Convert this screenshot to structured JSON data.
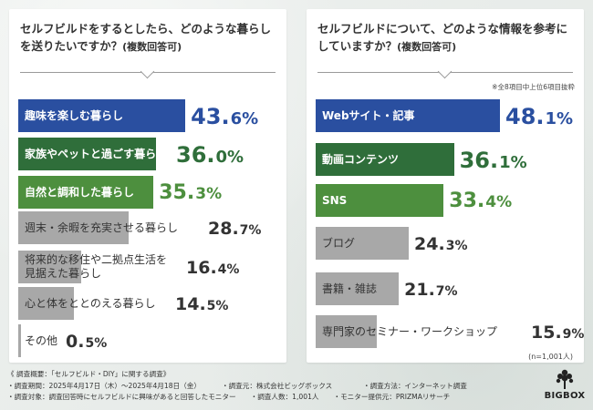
{
  "colors": {
    "blue": "#2a4fa0",
    "green_dark": "#2f6e3a",
    "green_mid": "#4d8f3e",
    "gray_bar": "#a8a8a8",
    "gray_text": "#333333"
  },
  "chart_data": [
    {
      "type": "bar",
      "orientation": "horizontal",
      "title": "セルフビルドをするとしたら、どのような暮らしを送りたいですか？",
      "title_note": "(複数回答可)",
      "xlim": [
        0,
        100
      ],
      "categories": [
        "趣味を楽しむ暮らし",
        "家族やペットと過ごす暮らし",
        "自然と調和した暮らし",
        "週末・余暇を充実させる暮らし",
        "将来的な移住や二拠点生活を見据えた暮らし",
        "心と体をととのえる暮らし",
        "その他"
      ],
      "values": [
        43.6,
        36.0,
        35.3,
        28.7,
        16.4,
        14.5,
        0.5
      ],
      "value_labels": [
        {
          "num": "43.",
          "suf": "6%"
        },
        {
          "num": "36.",
          "suf": "0%"
        },
        {
          "num": "35.",
          "suf": "3%"
        },
        {
          "num": "28.",
          "suf": "7%"
        },
        {
          "num": "16.",
          "suf": "4%"
        },
        {
          "num": "14.",
          "suf": "5%"
        },
        {
          "num": "0.",
          "suf": "5%"
        }
      ]
    },
    {
      "type": "bar",
      "orientation": "horizontal",
      "title": "セルフビルドについて、どのような情報を参考にしていますか？",
      "title_note": "(複数回答可)",
      "extract_note": "※全8項目中上位6項目抜粋",
      "sample_note": "(n=1,001人)",
      "xlim": [
        0,
        100
      ],
      "categories": [
        "Webサイト・記事",
        "動画コンテンツ",
        "SNS",
        "ブログ",
        "書籍・雑誌",
        "専門家のセミナー・ワークショップ"
      ],
      "values": [
        48.1,
        36.1,
        33.4,
        24.3,
        21.7,
        15.9
      ],
      "value_labels": [
        {
          "num": "48.",
          "suf": "1%"
        },
        {
          "num": "36.",
          "suf": "1%"
        },
        {
          "num": "33.",
          "suf": "4%"
        },
        {
          "num": "24.",
          "suf": "3%"
        },
        {
          "num": "21.",
          "suf": "7%"
        },
        {
          "num": "15.",
          "suf": "9%"
        }
      ]
    }
  ],
  "footer": {
    "overview": "《 調査概要：「セルフビルド・DIY」に関する調査》",
    "period": "調査期間：2025年4月17日（木）～2025年4月18日（金）",
    "org": "調査元：株式会社ビッグボックス",
    "method": "調査方法：インターネット調査",
    "target": "調査対象：調査回答時にセルフビルドに興味があると回答したモニター",
    "count": "調査人数：1,001人",
    "provider": "モニター提供元：PRIZMAリサーチ"
  },
  "logo": {
    "text": "BIGBOX",
    "icon": "tree-icon"
  }
}
